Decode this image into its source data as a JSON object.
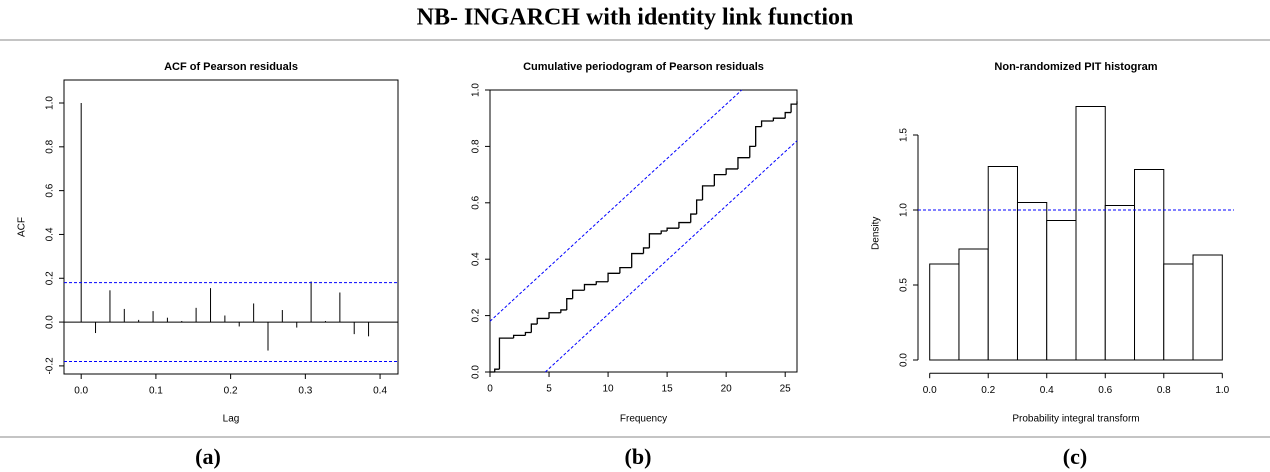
{
  "title": "NB- INGARCH with identity link function",
  "panel_labels": [
    "(a)",
    "(b)",
    "(c)"
  ],
  "chart_data": [
    {
      "type": "needle",
      "title": "ACF of Pearson residuals",
      "xlabel": "Lag",
      "ylabel": "ACF",
      "color": "#000000",
      "x": [
        0,
        0.0192,
        0.0385,
        0.0577,
        0.0769,
        0.0962,
        0.1154,
        0.1346,
        0.1538,
        0.1731,
        0.1923,
        0.2115,
        0.2308,
        0.25,
        0.2692,
        0.2885,
        0.3077,
        0.3269,
        0.3462,
        0.3654,
        0.3846
      ],
      "values": [
        1.0,
        -0.05,
        0.145,
        0.06,
        0.01,
        0.05,
        0.02,
        0.005,
        0.065,
        0.155,
        0.03,
        -0.02,
        0.085,
        -0.13,
        0.055,
        -0.025,
        0.185,
        0.005,
        0.135,
        -0.055,
        -0.065
      ],
      "hlines": [
        0.18,
        -0.18
      ],
      "hline_color": "#0000ff",
      "xlim": [
        -0.023,
        0.424
      ],
      "ylim": [
        -0.237,
        1.105
      ],
      "xticks": [
        {
          "value": 0,
          "label": "0.0"
        },
        0.1,
        0.2,
        0.3,
        0.4
      ],
      "yticks": [
        -0.2,
        {
          "value": 0,
          "label": "0.0"
        },
        0.2,
        0.4,
        0.6,
        0.8,
        {
          "value": 1,
          "label": "1.0"
        }
      ]
    },
    {
      "type": "step",
      "title": "Cumulative periodogram of Pearson residuals",
      "xlabel": "Frequency",
      "color": "#000000",
      "x": [
        0,
        0.4,
        0.8,
        2,
        3,
        3.5,
        4,
        5,
        6,
        6.5,
        7,
        8,
        9,
        10,
        11,
        12,
        13,
        13.5,
        14.5,
        15,
        16,
        17,
        17.5,
        18,
        19,
        20,
        21,
        22,
        22.5,
        23,
        24,
        25,
        25.5,
        26
      ],
      "values": [
        0,
        0.01,
        0.12,
        0.13,
        0.14,
        0.17,
        0.19,
        0.21,
        0.22,
        0.26,
        0.29,
        0.31,
        0.32,
        0.35,
        0.37,
        0.42,
        0.44,
        0.49,
        0.5,
        0.51,
        0.53,
        0.56,
        0.61,
        0.66,
        0.7,
        0.72,
        0.76,
        0.8,
        0.87,
        0.89,
        0.9,
        0.92,
        0.95,
        0.96
      ],
      "bound_lines": [
        {
          "x": [
            0,
            21.32
          ],
          "values": [
            0.18,
            1
          ]
        },
        {
          "x": [
            4.68,
            26
          ],
          "values": [
            0,
            0.82
          ]
        }
      ],
      "line_color": "#0000ff",
      "xlim": [
        0,
        26
      ],
      "ylim": [
        0,
        1
      ],
      "xticks": [
        0,
        5,
        10,
        15,
        20,
        25
      ],
      "yticks": [
        {
          "value": 0,
          "label": "0.0"
        },
        0.2,
        0.4,
        0.6,
        0.8,
        {
          "value": 1,
          "label": "1.0"
        }
      ]
    },
    {
      "type": "histogram",
      "title": "Non-randomized PIT histogram",
      "xlabel": "Probability integral transform",
      "ylabel": "Density",
      "color": "#ffffff",
      "bins": [
        0,
        0.1,
        0.2,
        0.3,
        0.4,
        0.5,
        0.6,
        0.7,
        0.8,
        0.9,
        1
      ],
      "values": [
        0.64,
        0.74,
        1.29,
        1.05,
        0.93,
        1.69,
        1.03,
        1.27,
        0.64,
        0.7
      ],
      "hlines": [
        1
      ],
      "hline_color": "#0000ff",
      "xlim": [
        -0.04,
        1.04
      ],
      "ylim": [
        -0.068,
        1.758
      ],
      "xticks": [
        {
          "value": 0,
          "label": "0.0"
        },
        0.2,
        0.4,
        0.6,
        0.8,
        {
          "value": 1,
          "label": "1.0"
        }
      ],
      "yticks": [
        {
          "value": 0,
          "label": "0.0"
        },
        0.5,
        {
          "value": 1,
          "label": "1.0"
        },
        1.5
      ]
    }
  ]
}
